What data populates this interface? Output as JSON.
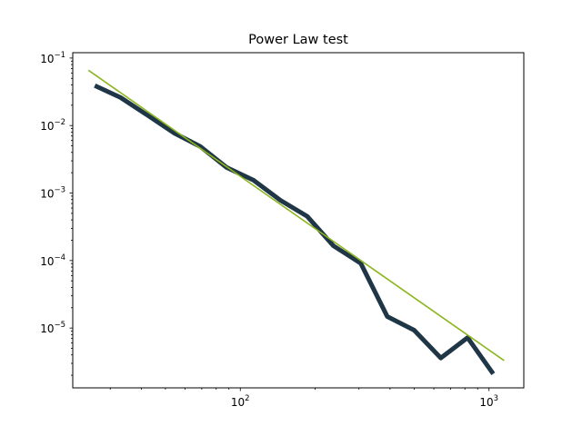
{
  "chart_data": {
    "type": "line",
    "title": "Power Law test",
    "xlabel": "",
    "ylabel": "",
    "xscale": "log",
    "yscale": "log",
    "xlim": [
      21.2,
      1380
    ],
    "ylim": [
      1.3e-06,
      0.12
    ],
    "grid": false,
    "x_major_ticks": [
      {
        "value": 100,
        "base": "10",
        "exp": "2"
      },
      {
        "value": 1000,
        "base": "10",
        "exp": "3"
      }
    ],
    "y_major_ticks": [
      {
        "value": 1e-05,
        "base": "10",
        "exp": "−5"
      },
      {
        "value": 0.0001,
        "base": "10",
        "exp": "−4"
      },
      {
        "value": 0.001,
        "base": "10",
        "exp": "−3"
      },
      {
        "value": 0.01,
        "base": "10",
        "exp": "−2"
      },
      {
        "value": 0.1,
        "base": "10",
        "exp": "−1"
      }
    ],
    "series": [
      {
        "color": "#1f3646",
        "x": [
          26,
          33,
          42,
          54,
          69,
          88,
          113,
          145,
          186,
          237,
          305,
          390,
          500,
          640,
          820,
          1040
        ],
        "y": [
          0.039,
          0.026,
          0.0145,
          0.0078,
          0.0049,
          0.0024,
          0.00155,
          0.00078,
          0.00045,
          0.000165,
          9.1e-05,
          1.48e-05,
          9.3e-06,
          3.6e-06,
          7.2e-06,
          2.1e-06
        ]
      },
      {
        "color": "#8db51f",
        "x": [
          24.5,
          1150
        ],
        "y": [
          0.066,
          3.3e-06
        ]
      }
    ]
  }
}
